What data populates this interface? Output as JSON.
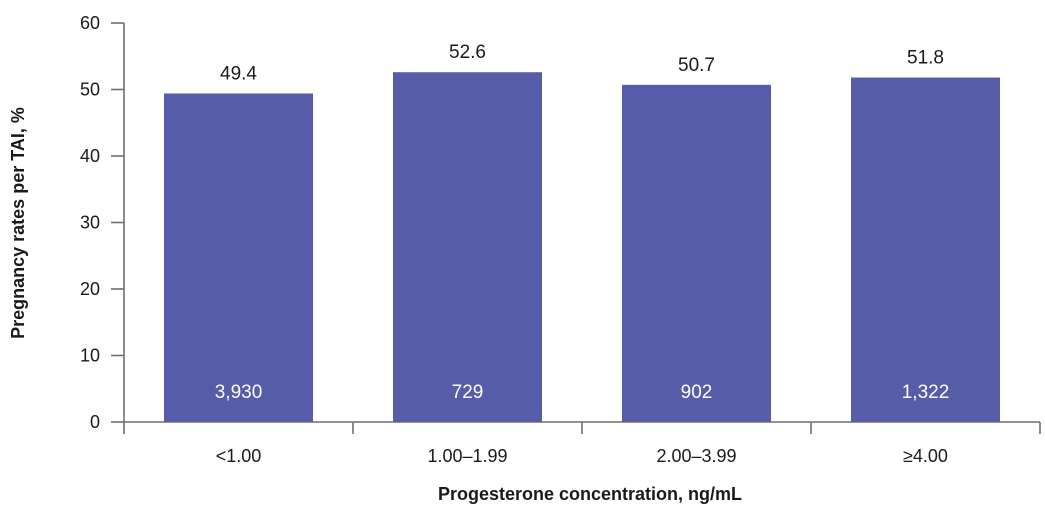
{
  "chart_data": {
    "type": "bar",
    "categories": [
      "<1.00",
      "1.00–1.99",
      "2.00–3.99",
      "≥4.00"
    ],
    "values": [
      49.4,
      52.6,
      50.7,
      51.8
    ],
    "value_labels": [
      "49.4",
      "52.6",
      "50.7",
      "51.8"
    ],
    "bar_counts": [
      "3,930",
      "729",
      "902",
      "1,322"
    ],
    "title": "",
    "xlabel": "Progesterone concentration, ng/mL",
    "ylabel": "Pregnancy rates per TAI, %",
    "ylim": [
      0,
      60
    ],
    "yticks": [
      0,
      10,
      20,
      30,
      40,
      50,
      60
    ],
    "grid": false,
    "legend": "none",
    "bar_color": "#575ca8"
  }
}
